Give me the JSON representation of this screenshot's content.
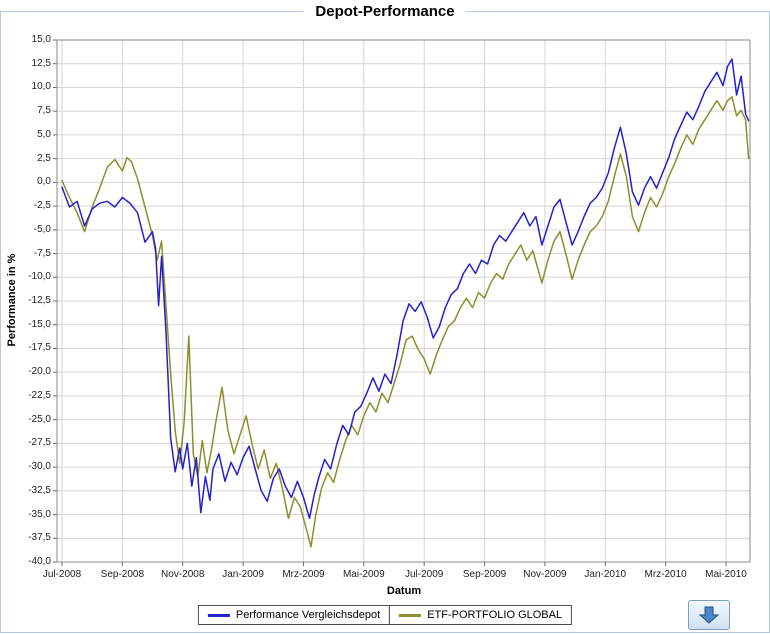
{
  "panel": {
    "border_color": "#aecbe8"
  },
  "chart_data": {
    "type": "line",
    "title": "Depot-Performance",
    "xlabel": "Datum",
    "ylabel": "Performance in %",
    "ylim": [
      -40,
      15
    ],
    "ytick_step": 2.5,
    "grid": true,
    "legend_position": "bottom",
    "y_tick_labels": [
      "15,0",
      "12,5",
      "10,0",
      "7,5",
      "5,0",
      "2,5",
      "0,0",
      "-2,5",
      "-5,0",
      "-7,5",
      "-10,0",
      "-12,5",
      "-15,0",
      "-17,5",
      "-20,0",
      "-22,5",
      "-25,0",
      "-27,5",
      "-30,0",
      "-32,5",
      "-35,0",
      "-37,5",
      "-40,0"
    ],
    "x_tick_months": [
      0,
      2,
      4,
      6,
      8,
      10,
      12,
      14,
      16,
      18,
      20,
      22
    ],
    "x_tick_labels": [
      "Jul-2008",
      "Sep-2008",
      "Nov-2008",
      "Jan-2009",
      "Mrz-2009",
      "Mai-2009",
      "Jul-2009",
      "Sep-2009",
      "Nov-2009",
      "Jan-2010",
      "Mrz-2010",
      "Mai-2010"
    ],
    "series": [
      {
        "name": "Performance Vergleichsdepot",
        "color": "#2222cc",
        "points": [
          [
            0,
            -0.5
          ],
          [
            0.25,
            -2.6
          ],
          [
            0.5,
            -2.0
          ],
          [
            0.75,
            -4.6
          ],
          [
            1,
            -2.8
          ],
          [
            1.25,
            -2.2
          ],
          [
            1.5,
            -2.0
          ],
          [
            1.75,
            -2.6
          ],
          [
            2,
            -1.6
          ],
          [
            2.25,
            -2.2
          ],
          [
            2.5,
            -3.2
          ],
          [
            2.75,
            -6.3
          ],
          [
            3,
            -5.2
          ],
          [
            3.1,
            -7.0
          ],
          [
            3.2,
            -13.0
          ],
          [
            3.3,
            -7.8
          ],
          [
            3.45,
            -16.0
          ],
          [
            3.6,
            -27.0
          ],
          [
            3.75,
            -30.5
          ],
          [
            3.9,
            -28.0
          ],
          [
            4,
            -30.2
          ],
          [
            4.15,
            -27.5
          ],
          [
            4.3,
            -32.0
          ],
          [
            4.45,
            -29.0
          ],
          [
            4.6,
            -34.8
          ],
          [
            4.75,
            -31.0
          ],
          [
            4.9,
            -33.5
          ],
          [
            5,
            -30.2
          ],
          [
            5.2,
            -28.6
          ],
          [
            5.4,
            -31.5
          ],
          [
            5.6,
            -29.5
          ],
          [
            5.8,
            -30.8
          ],
          [
            6,
            -29.0
          ],
          [
            6.2,
            -27.8
          ],
          [
            6.4,
            -30.2
          ],
          [
            6.6,
            -32.5
          ],
          [
            6.8,
            -33.6
          ],
          [
            7,
            -31.2
          ],
          [
            7.2,
            -30.2
          ],
          [
            7.4,
            -32.0
          ],
          [
            7.6,
            -33.2
          ],
          [
            7.8,
            -31.5
          ],
          [
            8,
            -33.2
          ],
          [
            8.2,
            -35.4
          ],
          [
            8.35,
            -33.0
          ],
          [
            8.5,
            -31.2
          ],
          [
            8.7,
            -29.2
          ],
          [
            8.9,
            -30.2
          ],
          [
            9.1,
            -27.6
          ],
          [
            9.3,
            -25.6
          ],
          [
            9.5,
            -26.6
          ],
          [
            9.7,
            -24.2
          ],
          [
            9.9,
            -23.6
          ],
          [
            10.1,
            -22.2
          ],
          [
            10.3,
            -20.6
          ],
          [
            10.5,
            -22.0
          ],
          [
            10.7,
            -20.2
          ],
          [
            10.9,
            -21.2
          ],
          [
            11.1,
            -18.2
          ],
          [
            11.3,
            -14.6
          ],
          [
            11.5,
            -12.8
          ],
          [
            11.7,
            -13.6
          ],
          [
            11.9,
            -12.6
          ],
          [
            12.1,
            -14.2
          ],
          [
            12.3,
            -16.4
          ],
          [
            12.5,
            -15.2
          ],
          [
            12.7,
            -13.2
          ],
          [
            12.9,
            -11.8
          ],
          [
            13.1,
            -11.2
          ],
          [
            13.3,
            -9.6
          ],
          [
            13.5,
            -8.6
          ],
          [
            13.7,
            -9.6
          ],
          [
            13.9,
            -8.2
          ],
          [
            14.1,
            -8.6
          ],
          [
            14.3,
            -6.6
          ],
          [
            14.5,
            -5.6
          ],
          [
            14.7,
            -6.2
          ],
          [
            14.9,
            -5.2
          ],
          [
            15.1,
            -4.2
          ],
          [
            15.3,
            -3.2
          ],
          [
            15.5,
            -4.6
          ],
          [
            15.7,
            -3.6
          ],
          [
            15.9,
            -6.6
          ],
          [
            16.1,
            -4.6
          ],
          [
            16.3,
            -2.6
          ],
          [
            16.5,
            -1.8
          ],
          [
            16.7,
            -4.2
          ],
          [
            16.9,
            -6.6
          ],
          [
            17.1,
            -5.2
          ],
          [
            17.3,
            -3.6
          ],
          [
            17.5,
            -2.2
          ],
          [
            17.7,
            -1.6
          ],
          [
            17.9,
            -0.6
          ],
          [
            18.1,
            1.0
          ],
          [
            18.3,
            3.6
          ],
          [
            18.5,
            5.8
          ],
          [
            18.7,
            3.0
          ],
          [
            18.9,
            -1.0
          ],
          [
            19.1,
            -2.4
          ],
          [
            19.3,
            -0.6
          ],
          [
            19.5,
            0.6
          ],
          [
            19.7,
            -0.6
          ],
          [
            19.9,
            1.0
          ],
          [
            20.1,
            2.6
          ],
          [
            20.3,
            4.6
          ],
          [
            20.5,
            6.0
          ],
          [
            20.7,
            7.4
          ],
          [
            20.9,
            6.6
          ],
          [
            21.1,
            8.0
          ],
          [
            21.3,
            9.6
          ],
          [
            21.5,
            10.6
          ],
          [
            21.7,
            11.6
          ],
          [
            21.9,
            10.2
          ],
          [
            22.05,
            12.2
          ],
          [
            22.2,
            13.0
          ],
          [
            22.35,
            9.2
          ],
          [
            22.5,
            11.2
          ],
          [
            22.65,
            7.2
          ],
          [
            22.75,
            6.5
          ]
        ]
      },
      {
        "name": "ETF-PORTFOLIO GLOBAL",
        "color": "#8e8e2d",
        "points": [
          [
            0,
            0.2
          ],
          [
            0.25,
            -1.6
          ],
          [
            0.5,
            -3.2
          ],
          [
            0.75,
            -5.2
          ],
          [
            1,
            -2.6
          ],
          [
            1.25,
            -0.6
          ],
          [
            1.5,
            1.6
          ],
          [
            1.75,
            2.4
          ],
          [
            2,
            1.2
          ],
          [
            2.15,
            2.6
          ],
          [
            2.3,
            2.2
          ],
          [
            2.5,
            0.4
          ],
          [
            2.75,
            -2.6
          ],
          [
            3,
            -5.6
          ],
          [
            3.15,
            -8.2
          ],
          [
            3.3,
            -6.2
          ],
          [
            3.45,
            -13.2
          ],
          [
            3.6,
            -20.2
          ],
          [
            3.75,
            -26.2
          ],
          [
            3.9,
            -29.6
          ],
          [
            4.05,
            -25.2
          ],
          [
            4.2,
            -16.2
          ],
          [
            4.35,
            -28.6
          ],
          [
            4.5,
            -31.0
          ],
          [
            4.65,
            -27.2
          ],
          [
            4.8,
            -30.6
          ],
          [
            4.95,
            -28.2
          ],
          [
            5.1,
            -25.2
          ],
          [
            5.3,
            -21.6
          ],
          [
            5.5,
            -26.2
          ],
          [
            5.7,
            -28.6
          ],
          [
            5.9,
            -26.6
          ],
          [
            6.1,
            -24.6
          ],
          [
            6.3,
            -27.6
          ],
          [
            6.5,
            -30.2
          ],
          [
            6.7,
            -28.2
          ],
          [
            6.9,
            -31.2
          ],
          [
            7.1,
            -29.6
          ],
          [
            7.3,
            -32.2
          ],
          [
            7.5,
            -35.4
          ],
          [
            7.7,
            -33.2
          ],
          [
            7.9,
            -34.2
          ],
          [
            8.1,
            -36.6
          ],
          [
            8.25,
            -38.4
          ],
          [
            8.4,
            -35.2
          ],
          [
            8.6,
            -32.2
          ],
          [
            8.8,
            -30.6
          ],
          [
            9,
            -31.6
          ],
          [
            9.2,
            -29.2
          ],
          [
            9.4,
            -27.2
          ],
          [
            9.6,
            -25.6
          ],
          [
            9.8,
            -26.6
          ],
          [
            10,
            -24.6
          ],
          [
            10.2,
            -23.2
          ],
          [
            10.4,
            -24.2
          ],
          [
            10.6,
            -22.2
          ],
          [
            10.8,
            -23.2
          ],
          [
            11,
            -21.2
          ],
          [
            11.2,
            -19.2
          ],
          [
            11.4,
            -16.6
          ],
          [
            11.6,
            -16.2
          ],
          [
            11.8,
            -17.6
          ],
          [
            12,
            -18.6
          ],
          [
            12.2,
            -20.2
          ],
          [
            12.4,
            -18.2
          ],
          [
            12.6,
            -16.6
          ],
          [
            12.8,
            -15.2
          ],
          [
            13,
            -14.6
          ],
          [
            13.2,
            -13.2
          ],
          [
            13.4,
            -12.2
          ],
          [
            13.6,
            -13.2
          ],
          [
            13.8,
            -11.6
          ],
          [
            14,
            -12.2
          ],
          [
            14.2,
            -10.6
          ],
          [
            14.4,
            -9.6
          ],
          [
            14.6,
            -10.2
          ],
          [
            14.8,
            -8.6
          ],
          [
            15,
            -7.6
          ],
          [
            15.2,
            -6.6
          ],
          [
            15.4,
            -8.2
          ],
          [
            15.6,
            -7.2
          ],
          [
            15.9,
            -10.6
          ],
          [
            16.1,
            -8.2
          ],
          [
            16.3,
            -6.2
          ],
          [
            16.5,
            -5.2
          ],
          [
            16.7,
            -7.6
          ],
          [
            16.9,
            -10.2
          ],
          [
            17.1,
            -8.2
          ],
          [
            17.3,
            -6.6
          ],
          [
            17.5,
            -5.2
          ],
          [
            17.7,
            -4.6
          ],
          [
            17.9,
            -3.6
          ],
          [
            18.1,
            -2.0
          ],
          [
            18.3,
            0.6
          ],
          [
            18.5,
            3.0
          ],
          [
            18.7,
            0.6
          ],
          [
            18.9,
            -3.6
          ],
          [
            19.1,
            -5.2
          ],
          [
            19.3,
            -3.2
          ],
          [
            19.5,
            -1.6
          ],
          [
            19.7,
            -2.6
          ],
          [
            19.9,
            -1.2
          ],
          [
            20.1,
            0.6
          ],
          [
            20.3,
            2.0
          ],
          [
            20.5,
            3.6
          ],
          [
            20.7,
            5.0
          ],
          [
            20.9,
            4.0
          ],
          [
            21.1,
            5.6
          ],
          [
            21.3,
            6.6
          ],
          [
            21.5,
            7.6
          ],
          [
            21.7,
            8.6
          ],
          [
            21.9,
            7.6
          ],
          [
            22.05,
            8.6
          ],
          [
            22.2,
            9.0
          ],
          [
            22.35,
            7.0
          ],
          [
            22.5,
            7.6
          ],
          [
            22.65,
            6.6
          ],
          [
            22.75,
            2.5
          ]
        ]
      }
    ]
  },
  "controls": {
    "scroll_button_icon": "down-arrow-icon"
  }
}
